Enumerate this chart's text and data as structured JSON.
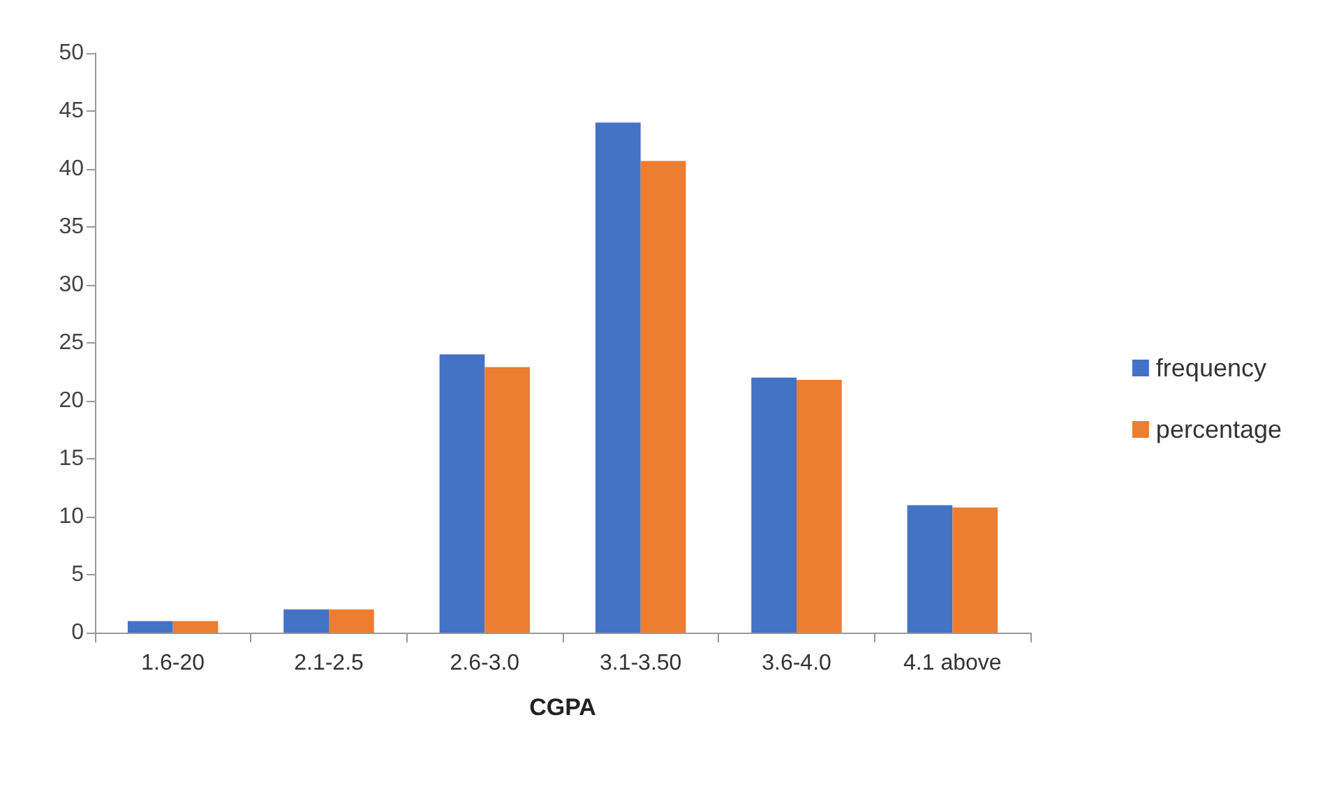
{
  "chart_data": {
    "type": "bar",
    "xlabel": "CGPA",
    "categories": [
      "1.6-20",
      "2.1-2.5",
      "2.6-3.0",
      "3.1-3.50",
      "3.6-4.0",
      "4.1 above"
    ],
    "series": [
      {
        "name": "frequency",
        "color": "#4472c4",
        "values": [
          1,
          2,
          24,
          44,
          22,
          11
        ]
      },
      {
        "name": "percentage",
        "color": "#ed7d31",
        "values": [
          1,
          2,
          22.9,
          40.7,
          21.8,
          10.8
        ]
      }
    ],
    "ylim": [
      0,
      50
    ],
    "yticks": [
      0,
      5,
      10,
      15,
      20,
      25,
      30,
      35,
      40,
      45,
      50
    ],
    "grid": false,
    "legend": "right"
  }
}
